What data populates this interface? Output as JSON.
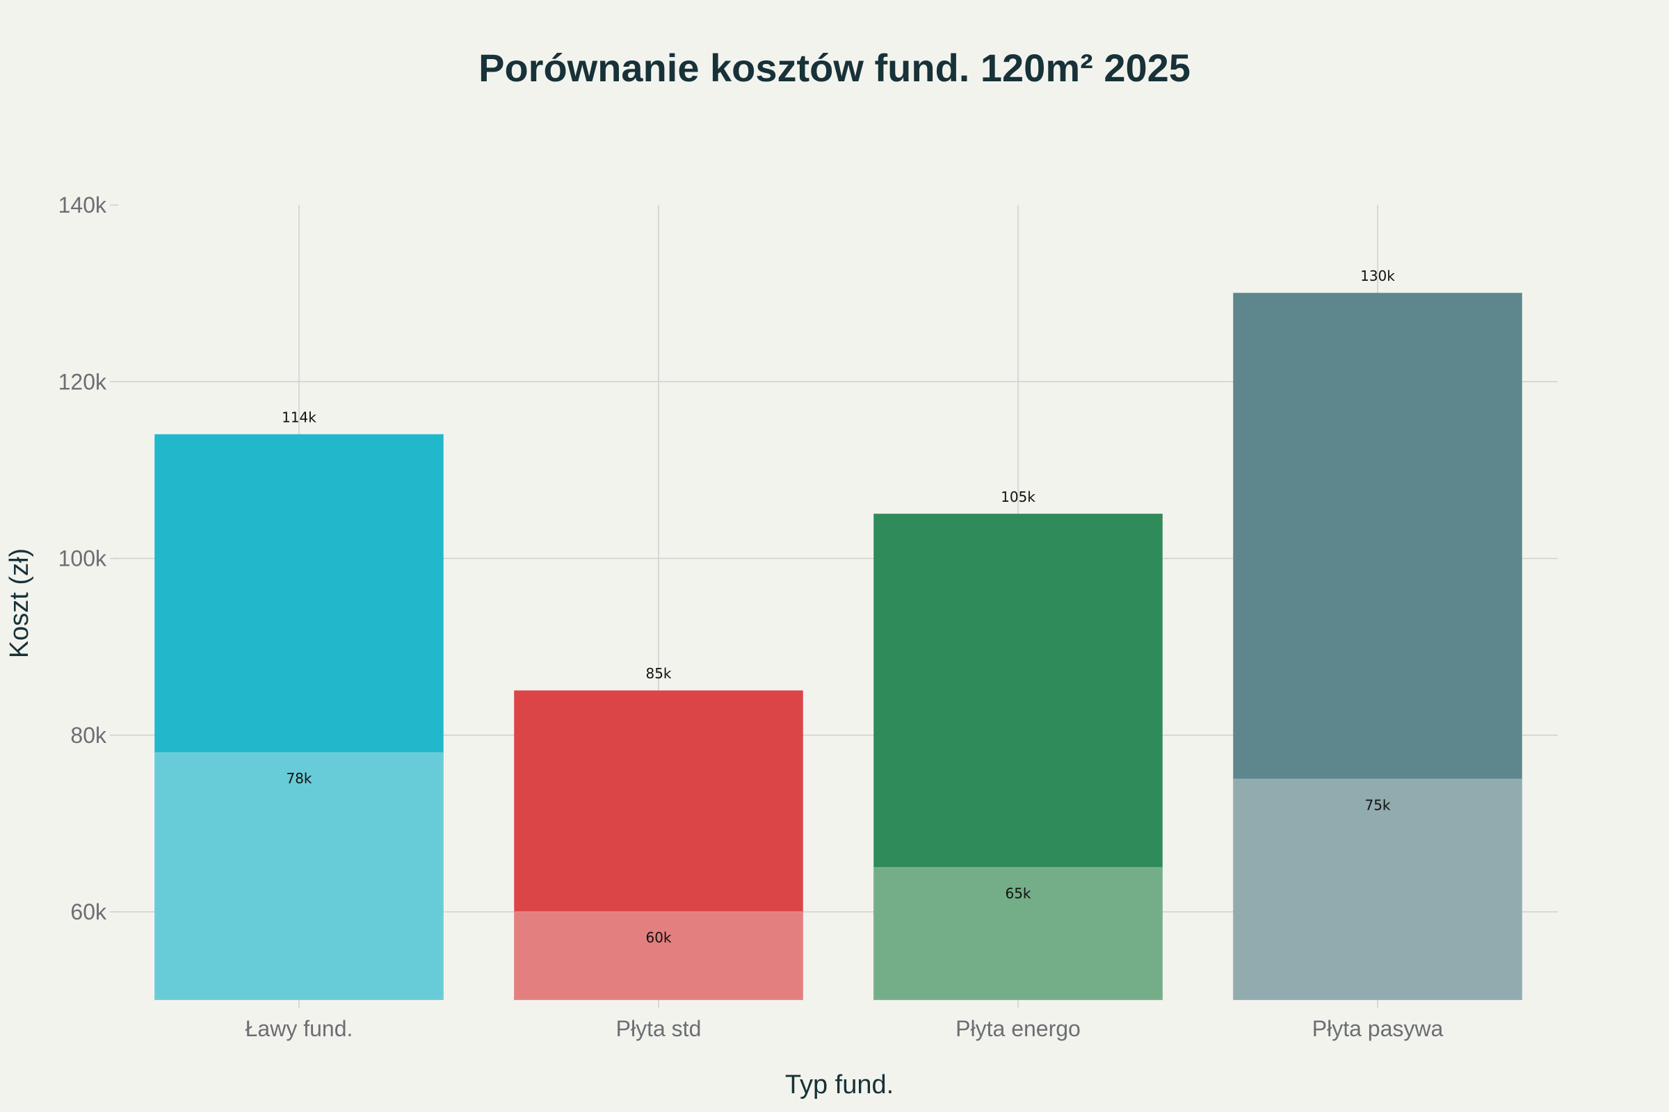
{
  "chart_data": {
    "type": "bar",
    "title": "Porównanie kosztów fund. 120m² 2025",
    "xlabel": "Typ fund.",
    "ylabel": "Koszt (zł)",
    "categories": [
      "Ławy fund.",
      "Płyta std",
      "Płyta energo",
      "Płyta pasywa"
    ],
    "series": [
      {
        "values": [
          114000,
          85000,
          105000,
          130000
        ],
        "labels": [
          "114k",
          "85k",
          "105k",
          "130k"
        ],
        "colors": [
          "#21b8cc",
          "#db4548",
          "#2f8b59",
          "#5d878c"
        ]
      },
      {
        "values": [
          78000,
          60000,
          65000,
          75000
        ],
        "labels": [
          "78k",
          "60k",
          "65k",
          "75k"
        ],
        "colors": [
          "#74cfd9",
          "#e48a88",
          "#7fb491",
          "#9ab1b4"
        ]
      }
    ],
    "ylim": [
      50000,
      140000
    ],
    "yticks": [
      60000,
      80000,
      100000,
      120000,
      140000
    ],
    "ytick_labels": [
      "60k",
      "80k",
      "100k",
      "120k",
      "140k"
    ],
    "grid": true,
    "legend": "none",
    "overlay": true
  }
}
